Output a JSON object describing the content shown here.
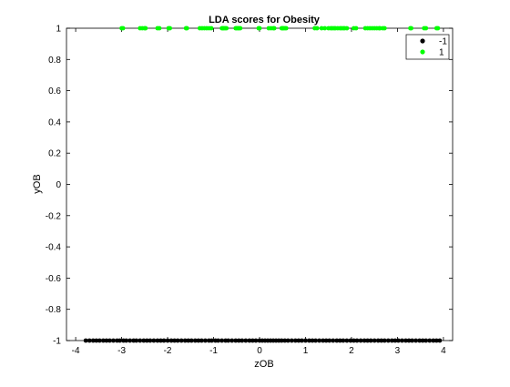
{
  "chart_data": {
    "type": "scatter",
    "title": "LDA scores for Obesity",
    "xlabel": "zOB",
    "ylabel": "yOB",
    "xlim": [
      -4.2,
      4.2
    ],
    "ylim": [
      -1,
      1
    ],
    "xticks": [
      -4,
      -3,
      -2,
      -1,
      0,
      1,
      2,
      3,
      4
    ],
    "xtick_labels": [
      "-4",
      "-3",
      "-2",
      "-1",
      "0",
      "1",
      "2",
      "3",
      "4"
    ],
    "yticks": [
      -1,
      -0.8,
      -0.6,
      -0.4,
      -0.2,
      0,
      0.2,
      0.4,
      0.6,
      0.8,
      1
    ],
    "ytick_labels": [
      "-1",
      "-0.8",
      "-0.6",
      "-0.4",
      "-0.2",
      "0",
      "0.2",
      "0.4",
      "0.6",
      "0.8",
      "1"
    ],
    "grid": false,
    "legend_position": "top-right",
    "series": [
      {
        "name": "-1",
        "color": "#000000",
        "y": -1,
        "x": [
          -3.78,
          -3.7,
          -3.62,
          -3.55,
          -3.48,
          -3.4,
          -3.33,
          -3.26,
          -3.18,
          -3.1,
          -3.04,
          -2.96,
          -2.9,
          -2.82,
          -2.74,
          -2.68,
          -2.6,
          -2.52,
          -2.45,
          -2.38,
          -2.3,
          -2.22,
          -2.15,
          -2.08,
          -2.0,
          -1.92,
          -1.85,
          -1.78,
          -1.7,
          -1.62,
          -1.55,
          -1.48,
          -1.4,
          -1.33,
          -1.26,
          -1.18,
          -1.1,
          -1.04,
          -0.96,
          -0.9,
          -0.82,
          -0.74,
          -0.68,
          -0.6,
          -0.52,
          -0.45,
          -0.38,
          -0.3,
          -0.22,
          -0.15,
          -0.08,
          0.0,
          0.06,
          0.12,
          0.18,
          0.24,
          0.3,
          0.36,
          0.42,
          0.48,
          0.55,
          0.62,
          0.7,
          0.78,
          0.85,
          0.92,
          1.0,
          1.08,
          1.15,
          1.22,
          1.3,
          1.38,
          1.45,
          1.52,
          1.6,
          1.68,
          1.75,
          1.82,
          1.9,
          1.98,
          2.05,
          2.12,
          2.2,
          2.28,
          2.35,
          2.42,
          2.5,
          2.58,
          2.65,
          2.72,
          2.8,
          2.88,
          2.95,
          3.02,
          3.1,
          3.18,
          3.25,
          3.32,
          3.4,
          3.48,
          3.55,
          3.62,
          3.7,
          3.78,
          3.85,
          3.92
        ]
      },
      {
        "name": "1",
        "color": "#00ff00",
        "y": 1,
        "x": [
          -3.0,
          -2.97,
          -2.6,
          -2.55,
          -2.5,
          -2.48,
          -2.22,
          -2.18,
          -1.98,
          -1.95,
          -1.6,
          -1.58,
          -1.3,
          -1.25,
          -1.2,
          -1.15,
          -1.1,
          -1.05,
          -0.82,
          -0.8,
          -0.78,
          -0.75,
          -0.72,
          -0.52,
          -0.5,
          -0.47,
          -0.45,
          -0.42,
          -0.02,
          0.0,
          0.2,
          0.25,
          0.3,
          0.32,
          0.48,
          0.5,
          0.52,
          0.55,
          0.58,
          1.2,
          1.25,
          1.35,
          1.42,
          1.5,
          1.55,
          1.58,
          1.62,
          1.65,
          1.7,
          1.75,
          1.78,
          1.82,
          1.85,
          1.9,
          2.05,
          2.1,
          2.3,
          2.35,
          2.4,
          2.45,
          2.5,
          2.55,
          2.6,
          2.62,
          2.68,
          2.72,
          3.28,
          3.3,
          3.58,
          3.62,
          3.85,
          3.88
        ]
      }
    ]
  }
}
